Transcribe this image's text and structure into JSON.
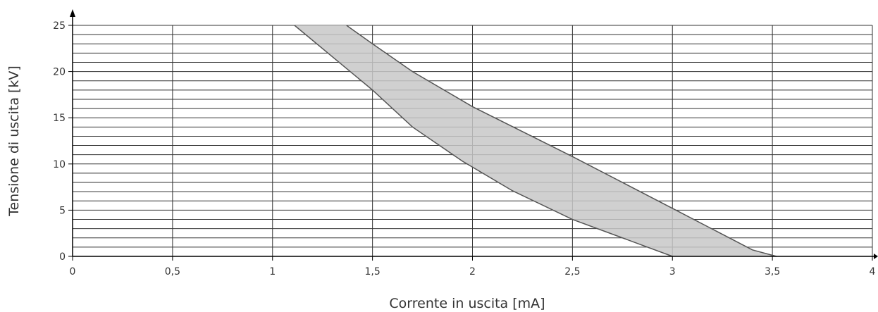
{
  "chart_data": {
    "type": "area",
    "xlabel": "Corrente in uscita [mA]",
    "ylabel": "Tensione di uscita [kV]",
    "xlim": [
      0,
      4
    ],
    "ylim": [
      0,
      25
    ],
    "x_ticks": [
      0,
      0.5,
      1,
      1.5,
      2,
      2.5,
      3,
      3.5,
      4
    ],
    "x_tick_labels": [
      "0",
      "0,5",
      "1",
      "1,5",
      "2",
      "2,5",
      "3",
      "3,5",
      "4"
    ],
    "y_ticks": [
      0,
      5,
      10,
      15,
      20,
      25
    ],
    "y_tick_labels": [
      "0",
      "5",
      "10",
      "15",
      "20",
      "25"
    ],
    "y_minor_step": 1,
    "grid": true,
    "legend": "none",
    "series": [
      {
        "role": "lower-boundary",
        "x": [
          1.11,
          1.5,
          1.7,
          1.95,
          2.2,
          2.5,
          2.75,
          3.0
        ],
        "y": [
          25,
          18,
          14,
          10.3,
          7.1,
          4.0,
          2.0,
          0
        ]
      },
      {
        "role": "upper-boundary",
        "x": [
          1.37,
          1.5,
          1.7,
          2.0,
          2.5,
          3.0,
          3.4,
          3.52
        ],
        "y": [
          25,
          23,
          20,
          16.2,
          10.8,
          5.2,
          0.7,
          0
        ]
      }
    ],
    "band_color": "#c8c8c8",
    "line_color": "#555555"
  }
}
